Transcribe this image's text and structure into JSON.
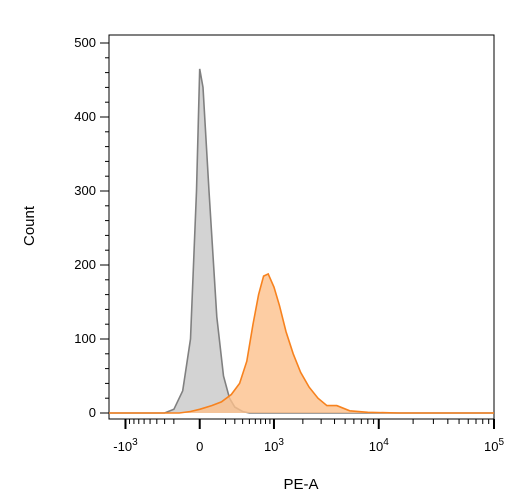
{
  "chart_data": {
    "type": "area",
    "xlabel": "PE-A",
    "ylabel": "Count",
    "ylim": [
      0,
      500
    ],
    "x_scale": "biexponential",
    "x_tick_labels": [
      {
        "base": "-10",
        "exp": "3",
        "value": -1000
      },
      {
        "base": "0",
        "exp": "",
        "value": 0
      },
      {
        "base": "10",
        "exp": "3",
        "value": 1000
      },
      {
        "base": "10",
        "exp": "4",
        "value": 10000
      },
      {
        "base": "10",
        "exp": "5",
        "value": 100000
      }
    ],
    "y_ticks": [
      0,
      100,
      200,
      300,
      400,
      500
    ],
    "grid": false,
    "legend": "none",
    "series": [
      {
        "fill": "#c8c8c8",
        "stroke": "#808080",
        "x": [
          -1500,
          -300,
          -200,
          -120,
          -60,
          -20,
          0,
          20,
          60,
          120,
          180,
          240,
          300,
          400,
          500,
          100000
        ],
        "y": [
          0,
          0,
          5,
          30,
          100,
          300,
          465,
          440,
          300,
          130,
          50,
          20,
          8,
          2,
          0,
          0
        ]
      },
      {
        "fill": "#fdc08c",
        "stroke": "#f7821e",
        "x": [
          -1500,
          -150,
          -60,
          0,
          80,
          160,
          260,
          360,
          460,
          560,
          660,
          760,
          860,
          1000,
          1150,
          1350,
          1600,
          1900,
          2300,
          2800,
          3400,
          4200,
          5500,
          8000,
          15000,
          40000,
          100000
        ],
        "y": [
          0,
          0,
          2,
          5,
          10,
          15,
          25,
          40,
          70,
          120,
          160,
          185,
          188,
          170,
          145,
          110,
          80,
          55,
          35,
          20,
          10,
          10,
          3,
          1,
          0,
          0,
          0
        ]
      }
    ]
  }
}
